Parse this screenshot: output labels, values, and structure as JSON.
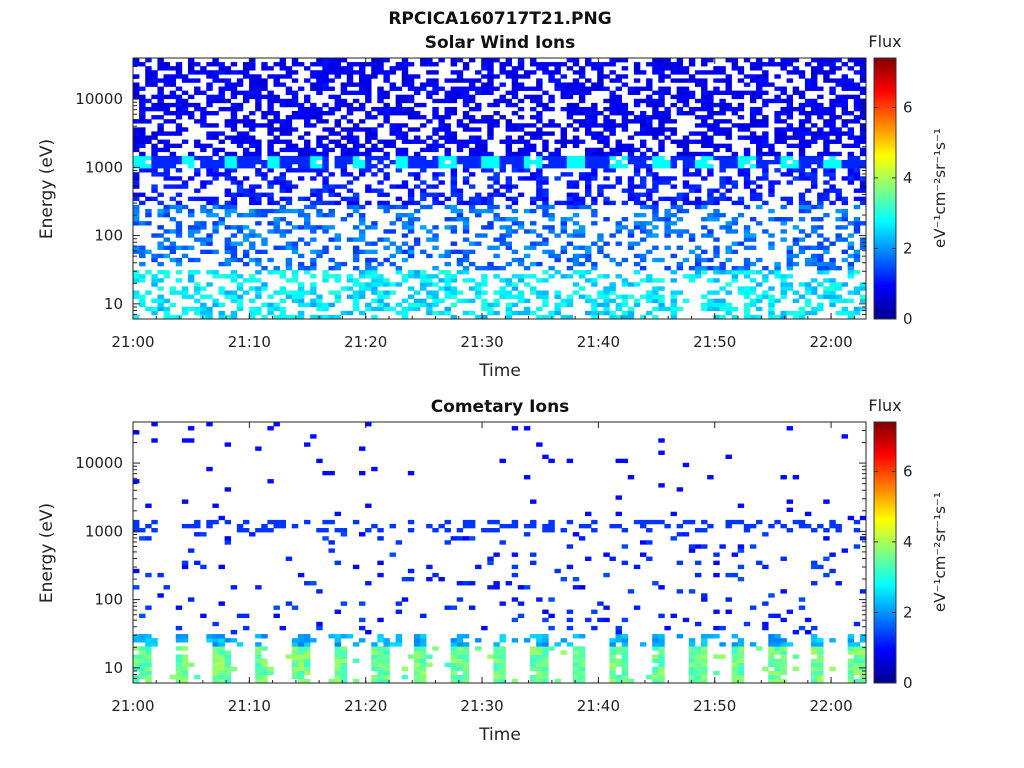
{
  "figure": {
    "title": "RPCICA160717T21.PNG"
  },
  "colormap": [
    "#00008f",
    "#0000ff",
    "#0080ff",
    "#00ffff",
    "#80ff80",
    "#ffff00",
    "#ff8000",
    "#ff0000",
    "#800000"
  ],
  "chart_data": [
    {
      "type": "heatmap",
      "title": "Solar Wind Ions",
      "xlabel": "Time",
      "ylabel": "Energy (eV)",
      "x_ticks": [
        "21:00",
        "21:10",
        "21:20",
        "21:30",
        "21:40",
        "21:50",
        "22:00"
      ],
      "x_range": [
        "21:00",
        "22:03"
      ],
      "y_scale": "log",
      "y_ticks": [
        "10",
        "100",
        "1000",
        "10000"
      ],
      "y_range": [
        6,
        40000
      ],
      "colorbar": {
        "label": "Flux",
        "unit": "eV⁻¹cm⁻²sr⁻¹s⁻¹",
        "ticks": [
          "0",
          "2",
          "4",
          "6"
        ],
        "range": [
          0,
          7.4
        ]
      },
      "bands": [
        {
          "energy_eV": [
            6,
            30
          ],
          "flux": 2.6,
          "note": "cyan patches"
        },
        {
          "energy_eV": [
            30,
            300
          ],
          "flux": 1.7,
          "note": "blue / light-blue"
        },
        {
          "energy_eV": [
            300,
            1000
          ],
          "flux": 1.1,
          "note": "dark blue"
        },
        {
          "energy_eV": [
            1000,
            1400
          ],
          "flux": 2.8,
          "note": "periodic bright line"
        },
        {
          "energy_eV": [
            1400,
            40000
          ],
          "flux": 0.8,
          "note": "dark blue, dense"
        }
      ]
    },
    {
      "type": "heatmap",
      "title": "Cometary Ions",
      "xlabel": "Time",
      "ylabel": "Energy (eV)",
      "x_ticks": [
        "21:00",
        "21:10",
        "21:20",
        "21:30",
        "21:40",
        "21:50",
        "22:00"
      ],
      "x_range": [
        "21:00",
        "22:03"
      ],
      "y_scale": "log",
      "y_ticks": [
        "10",
        "100",
        "1000",
        "10000"
      ],
      "y_range": [
        6,
        40000
      ],
      "colorbar": {
        "label": "Flux",
        "unit": "eV⁻¹cm⁻²sr⁻¹s⁻¹",
        "ticks": [
          "0",
          "2",
          "4",
          "6"
        ],
        "range": [
          0,
          7.4
        ]
      },
      "bands": [
        {
          "energy_eV": [
            6,
            20
          ],
          "flux": 3.4,
          "note": "green / yellow-green, periodic"
        },
        {
          "energy_eV": [
            20,
            30
          ],
          "flux": 2.2,
          "note": "cyan / light-blue"
        },
        {
          "energy_eV": [
            30,
            1000
          ],
          "flux": 1.2,
          "note": "sparse blue dashes"
        },
        {
          "energy_eV": [
            1000,
            1400
          ],
          "flux": 1.3,
          "note": "blue line at ~1 keV"
        },
        {
          "energy_eV": [
            1400,
            40000
          ],
          "flux": 1.0,
          "note": "very sparse"
        }
      ]
    }
  ]
}
